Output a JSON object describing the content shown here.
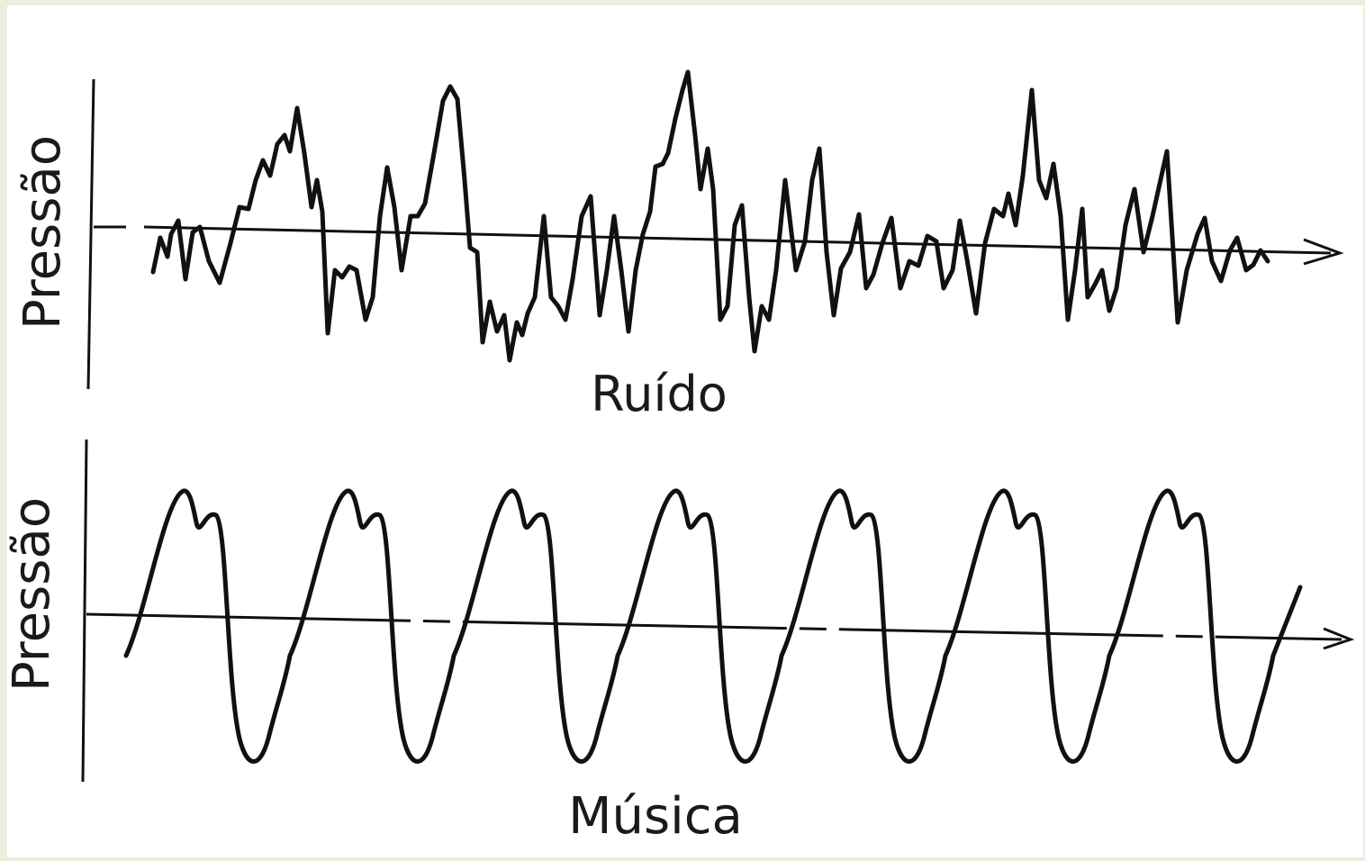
{
  "panels": [
    {
      "id": "noise",
      "ylabel": "Pressão",
      "caption": "Ruído"
    },
    {
      "id": "music",
      "ylabel": "Pressão",
      "caption": "Música"
    }
  ],
  "colors": {
    "page_frame": "#eceee0",
    "background": "#ffffff",
    "ink": "#111111"
  }
}
